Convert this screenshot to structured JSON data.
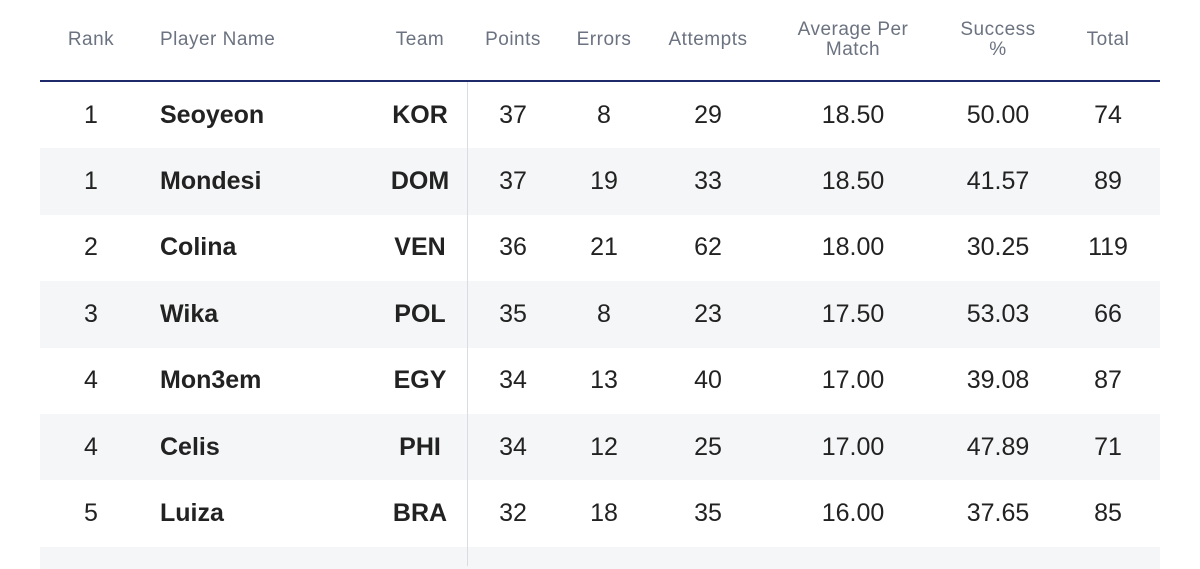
{
  "headers": {
    "rank": "Rank",
    "player_name": "Player Name",
    "team": "Team",
    "points": "Points",
    "errors": "Errors",
    "attempts": "Attempts",
    "average_line1": "Average Per",
    "average_line2": "Match",
    "success_line1": "Success",
    "success_line2": "%",
    "total": "Total"
  },
  "rows": [
    {
      "rank": "1",
      "name": "Seoyeon",
      "team": "KOR",
      "points": "37",
      "errors": "8",
      "attempts": "29",
      "average": "18.50",
      "success": "50.00",
      "total": "74"
    },
    {
      "rank": "1",
      "name": "Mondesi",
      "team": "DOM",
      "points": "37",
      "errors": "19",
      "attempts": "33",
      "average": "18.50",
      "success": "41.57",
      "total": "89"
    },
    {
      "rank": "2",
      "name": "Colina",
      "team": "VEN",
      "points": "36",
      "errors": "21",
      "attempts": "62",
      "average": "18.00",
      "success": "30.25",
      "total": "119"
    },
    {
      "rank": "3",
      "name": "Wika",
      "team": "POL",
      "points": "35",
      "errors": "8",
      "attempts": "23",
      "average": "17.50",
      "success": "53.03",
      "total": "66"
    },
    {
      "rank": "4",
      "name": "Mon3em",
      "team": "EGY",
      "points": "34",
      "errors": "13",
      "attempts": "40",
      "average": "17.00",
      "success": "39.08",
      "total": "87"
    },
    {
      "rank": "4",
      "name": "Celis",
      "team": "PHI",
      "points": "34",
      "errors": "12",
      "attempts": "25",
      "average": "17.00",
      "success": "47.89",
      "total": "71"
    },
    {
      "rank": "5",
      "name": "Luiza",
      "team": "BRA",
      "points": "32",
      "errors": "18",
      "attempts": "35",
      "average": "16.00",
      "success": "37.65",
      "total": "85"
    }
  ],
  "colors": {
    "header_rule": "#1f2a6b",
    "alt_row": "#f5f6f7",
    "header_text": "#6b7280",
    "body_text": "#222222"
  }
}
